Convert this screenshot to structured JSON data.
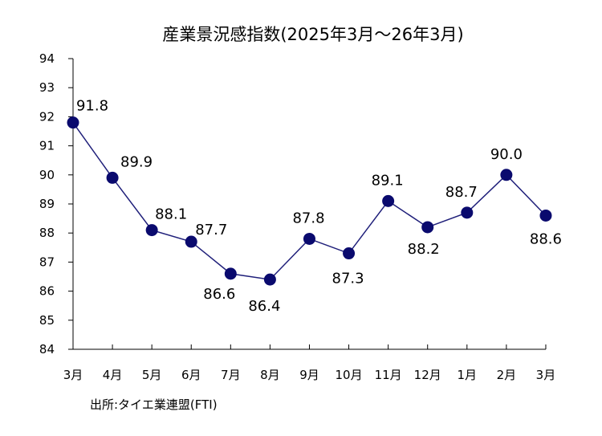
{
  "chart_data": {
    "type": "line",
    "title": "産業景況感指数(2025年3月～26年3月)",
    "categories": [
      "3月",
      "4月",
      "5月",
      "6月",
      "7月",
      "8月",
      "9月",
      "10月",
      "11月",
      "12月",
      "1月",
      "2月",
      "3月"
    ],
    "values": [
      91.8,
      89.9,
      88.1,
      87.7,
      86.6,
      86.4,
      87.8,
      87.3,
      89.1,
      88.2,
      88.7,
      90.0,
      88.6
    ],
    "data_labels": [
      "91.8",
      "89.9",
      "88.1",
      "87.7",
      "86.6",
      "86.4",
      "87.8",
      "87.3",
      "89.1",
      "88.2",
      "88.7",
      "90.0",
      "88.6"
    ],
    "ylim": [
      84,
      94
    ],
    "yticks": [
      "84",
      "85",
      "86",
      "87",
      "88",
      "89",
      "90",
      "91",
      "92",
      "93",
      "94"
    ],
    "grid": false,
    "legend": "none",
    "xlabel": "",
    "ylabel": "",
    "line_color": "#1f1f7a",
    "marker_color": "#0a0a6e",
    "source": "出所:タイエ業連盟(FTI)"
  }
}
